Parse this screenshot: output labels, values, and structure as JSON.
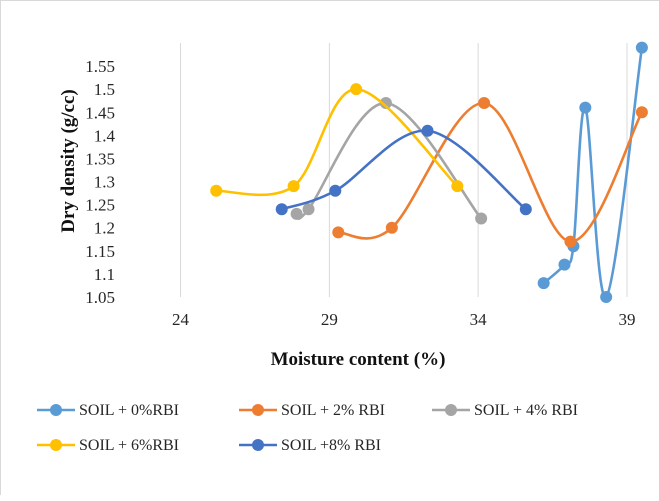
{
  "chart_data": {
    "type": "scatter",
    "title": "",
    "xlabel": "Moisture content (%)",
    "ylabel": "Dry density (g/cc)",
    "xlim": [
      22,
      39
    ],
    "ylim": [
      1.05,
      1.6
    ],
    "x_ticks": [
      24,
      29,
      34,
      39
    ],
    "y_ticks": [
      1.05,
      1.1,
      1.15,
      1.2,
      1.25,
      1.3,
      1.35,
      1.4,
      1.45,
      1.5,
      1.55
    ],
    "x_tick_labels": [
      "24",
      "29",
      "34",
      "39"
    ],
    "y_tick_labels": [
      "1.05",
      "1.1",
      "1.15",
      "1.2",
      "1.25",
      "1.3",
      "1.35",
      "1.4",
      "1.45",
      "1.5",
      "1.55"
    ],
    "grid": "vertical",
    "legend_position": "bottom",
    "series": [
      {
        "name": "SOIL + 0%RBI",
        "color": "#5b9bd5",
        "points": [
          [
            36.2,
            1.08
          ],
          [
            36.9,
            1.12
          ],
          [
            37.2,
            1.16
          ],
          [
            37.6,
            1.46
          ],
          [
            38.3,
            1.05
          ],
          [
            39.5,
            1.59
          ]
        ]
      },
      {
        "name": "SOIL + 2% RBI",
        "color": "#ed7d31",
        "points": [
          [
            29.3,
            1.19
          ],
          [
            31.1,
            1.2
          ],
          [
            34.2,
            1.47
          ],
          [
            37.1,
            1.17
          ],
          [
            39.5,
            1.45
          ]
        ]
      },
      {
        "name": "SOIL + 4% RBI",
        "color": "#a5a5a5",
        "points": [
          [
            27.9,
            1.23
          ],
          [
            28.3,
            1.24
          ],
          [
            30.9,
            1.47
          ],
          [
            34.1,
            1.22
          ]
        ]
      },
      {
        "name": "SOIL + 6%RBI",
        "color": "#ffc000",
        "points": [
          [
            25.2,
            1.28
          ],
          [
            27.8,
            1.29
          ],
          [
            29.9,
            1.5
          ],
          [
            33.3,
            1.29
          ]
        ]
      },
      {
        "name": "SOIL +8% RBI",
        "color": "#4472c4",
        "points": [
          [
            27.4,
            1.24
          ],
          [
            29.2,
            1.28
          ],
          [
            32.3,
            1.41
          ],
          [
            35.6,
            1.24
          ]
        ]
      }
    ]
  }
}
